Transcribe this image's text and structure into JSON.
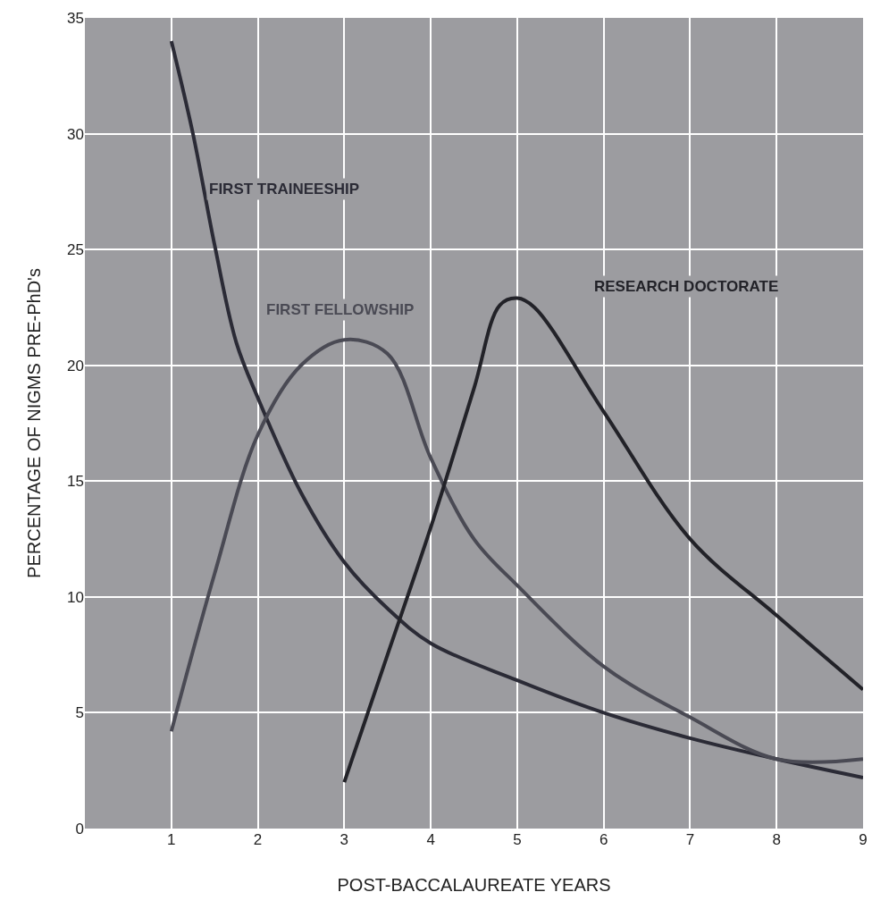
{
  "chart_data": {
    "type": "line",
    "xlabel": "POST-BACCALAUREATE YEARS",
    "ylabel": "PERCENTAGE OF NIGMS PRE-PhD's",
    "series": [
      {
        "name": "FIRST TRAINEESHIP",
        "color": "#2b2b36",
        "x": [
          1,
          1.25,
          1.5,
          1.75,
          2,
          2.5,
          3,
          3.5,
          4,
          5,
          6,
          7,
          8,
          9
        ],
        "values": [
          34,
          30,
          25.2,
          21,
          18.6,
          14.5,
          11.5,
          9.5,
          8,
          6.4,
          5,
          3.9,
          3,
          2.2
        ]
      },
      {
        "name": "FIRST FELLOWSHIP",
        "color": "#4a4a54",
        "x": [
          1,
          1.5,
          2,
          2.5,
          3,
          3.5,
          4,
          4.5,
          5,
          6,
          7,
          8,
          9
        ],
        "values": [
          4.2,
          11,
          17,
          20,
          21.1,
          20.5,
          16,
          12.5,
          10.5,
          7,
          4.8,
          3,
          3
        ]
      },
      {
        "name": "RESEARCH DOCTORATE",
        "color": "#222228",
        "x": [
          3,
          3.5,
          4,
          4.5,
          4.8,
          5,
          5.2,
          6,
          7,
          8,
          9
        ],
        "values": [
          2,
          7.5,
          13,
          19,
          22.6,
          22.9,
          22.5,
          18,
          12.5,
          9.2,
          6
        ]
      }
    ],
    "xlim": [
      0,
      9
    ],
    "xticks": [
      1,
      2,
      3,
      4,
      5,
      6,
      7,
      8,
      9
    ],
    "ylim": [
      0,
      35
    ],
    "yticks": [
      0,
      5,
      10,
      15,
      20,
      25,
      30,
      35
    ],
    "grid": true,
    "legend": false,
    "marker": "none",
    "line_style": "solid"
  }
}
